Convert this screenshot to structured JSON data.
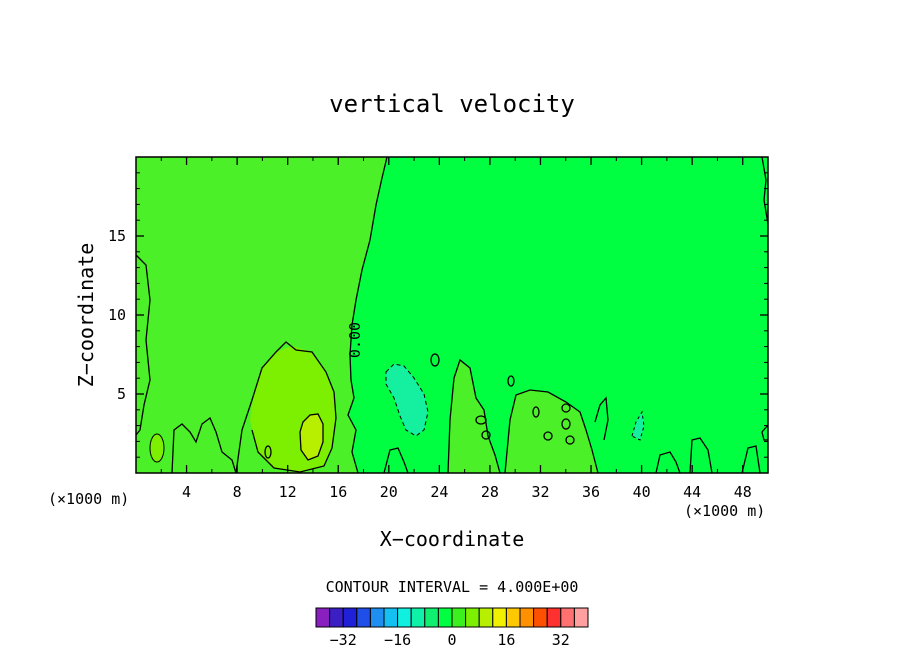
{
  "chart_data": {
    "type": "heatmap",
    "title": "vertical velocity",
    "xlabel": "X−coordinate",
    "ylabel": "Z−coordinate",
    "x_unit_left": "(×1000 m)",
    "y_unit_right": "(×1000 m)",
    "xlim": [
      0,
      50
    ],
    "ylim": [
      0,
      20
    ],
    "x_ticks": [
      4,
      8,
      12,
      16,
      20,
      24,
      28,
      32,
      36,
      40,
      44,
      48
    ],
    "y_ticks": [
      5,
      10,
      15
    ],
    "contour_label": "0.00",
    "contour_interval_text": "CONTOUR INTERVAL = 4.000E+00",
    "colorbar": {
      "levels": [
        -36,
        -32,
        -28,
        -24,
        -20,
        -16,
        -12,
        -8,
        -4,
        0,
        4,
        8,
        12,
        16,
        20,
        24,
        28,
        32,
        36
      ],
      "tick_labels": [
        "−32",
        "−16",
        "0",
        "16",
        "32"
      ],
      "tick_values": [
        -32,
        -16,
        0,
        16,
        32
      ],
      "colors": [
        "#8a1fbf",
        "#3b1fc4",
        "#2020d8",
        "#1f4ee8",
        "#1e8ef0",
        "#14c0f2",
        "#0ff0e0",
        "#0ff0a8",
        "#10f070",
        "#00ff40",
        "#3cf020",
        "#7cf000",
        "#b8ee00",
        "#f0f000",
        "#ffc800",
        "#ff9000",
        "#ff5000",
        "#ff3030",
        "#ff7070",
        "#ff9f9f"
      ]
    },
    "field_colors": {
      "positive": "#4cf028",
      "near_zero": "#00ff40",
      "moderate_up": "#7cf000",
      "strong_up": "#b8ee00",
      "weak_down": "#14f0a0"
    }
  }
}
